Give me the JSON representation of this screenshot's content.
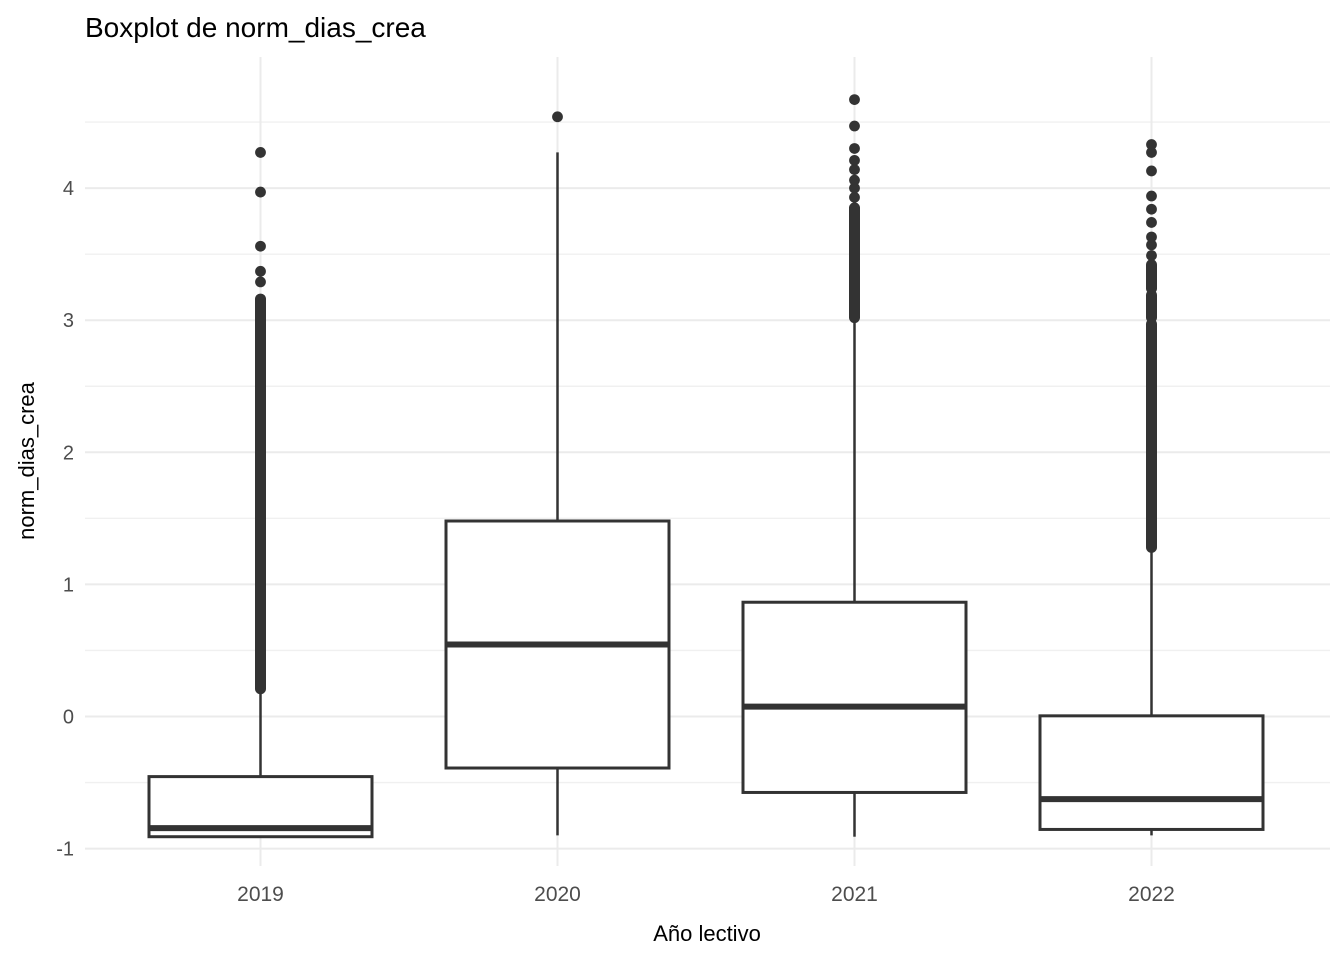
{
  "chart": {
    "title": "Boxplot de norm_dias_crea",
    "xlabel": "Año lectivo",
    "ylabel": "norm_dias_crea"
  },
  "chart_data": {
    "type": "boxplot",
    "title": "Boxplot de norm_dias_crea",
    "xlabel": "Año lectivo",
    "ylabel": "norm_dias_crea",
    "categories": [
      "2019",
      "2020",
      "2021",
      "2022"
    ],
    "y_axis": {
      "ticks": [
        -1,
        0,
        1,
        2,
        3,
        4
      ],
      "tick_labels": [
        "-1",
        "0",
        "1",
        "2",
        "3",
        "4"
      ],
      "minor_ticks": [
        -0.5,
        0.5,
        1.5,
        2.5,
        3.5,
        4.5
      ],
      "range": [
        -1.15,
        4.97
      ]
    },
    "grid": true,
    "legend": false,
    "series": [
      {
        "category": "2019",
        "whisker_low": -0.91,
        "q1": -0.91,
        "median": -0.845,
        "q3": -0.455,
        "whisker_high": 0.2,
        "outlier_dense_ranges": [
          [
            0.21,
            3.16
          ]
        ],
        "outlier_points": [
          3.29,
          3.37,
          3.56,
          3.97,
          4.27
        ]
      },
      {
        "category": "2020",
        "whisker_low": -0.9,
        "q1": -0.39,
        "median": 0.545,
        "q3": 1.48,
        "whisker_high": 4.27,
        "outlier_dense_ranges": [],
        "outlier_points": [
          4.54
        ]
      },
      {
        "category": "2021",
        "whisker_low": -0.91,
        "q1": -0.575,
        "median": 0.075,
        "q3": 0.865,
        "whisker_high": 3.02,
        "outlier_dense_ranges": [
          [
            3.02,
            3.85
          ]
        ],
        "outlier_points": [
          3.93,
          4.0,
          4.06,
          4.14,
          4.21,
          4.3,
          4.47,
          4.67
        ]
      },
      {
        "category": "2022",
        "whisker_low": -0.9,
        "q1": -0.855,
        "median": -0.625,
        "q3": 0.005,
        "whisker_high": 1.28,
        "outlier_dense_ranges": [
          [
            1.28,
            2.97
          ],
          [
            3.02,
            3.19
          ],
          [
            3.24,
            3.42
          ]
        ],
        "outlier_points": [
          3.49,
          3.57,
          3.63,
          3.74,
          3.84,
          3.94,
          4.13,
          4.27,
          4.33
        ]
      }
    ]
  },
  "style": {
    "background": "#FFFFFF",
    "grid_major_color": "#EBEBEB",
    "grid_minor_color": "#F0F0F0",
    "box_color": "#333333",
    "tick_label_color": "#4D4D4D",
    "title_color": "#000000"
  }
}
